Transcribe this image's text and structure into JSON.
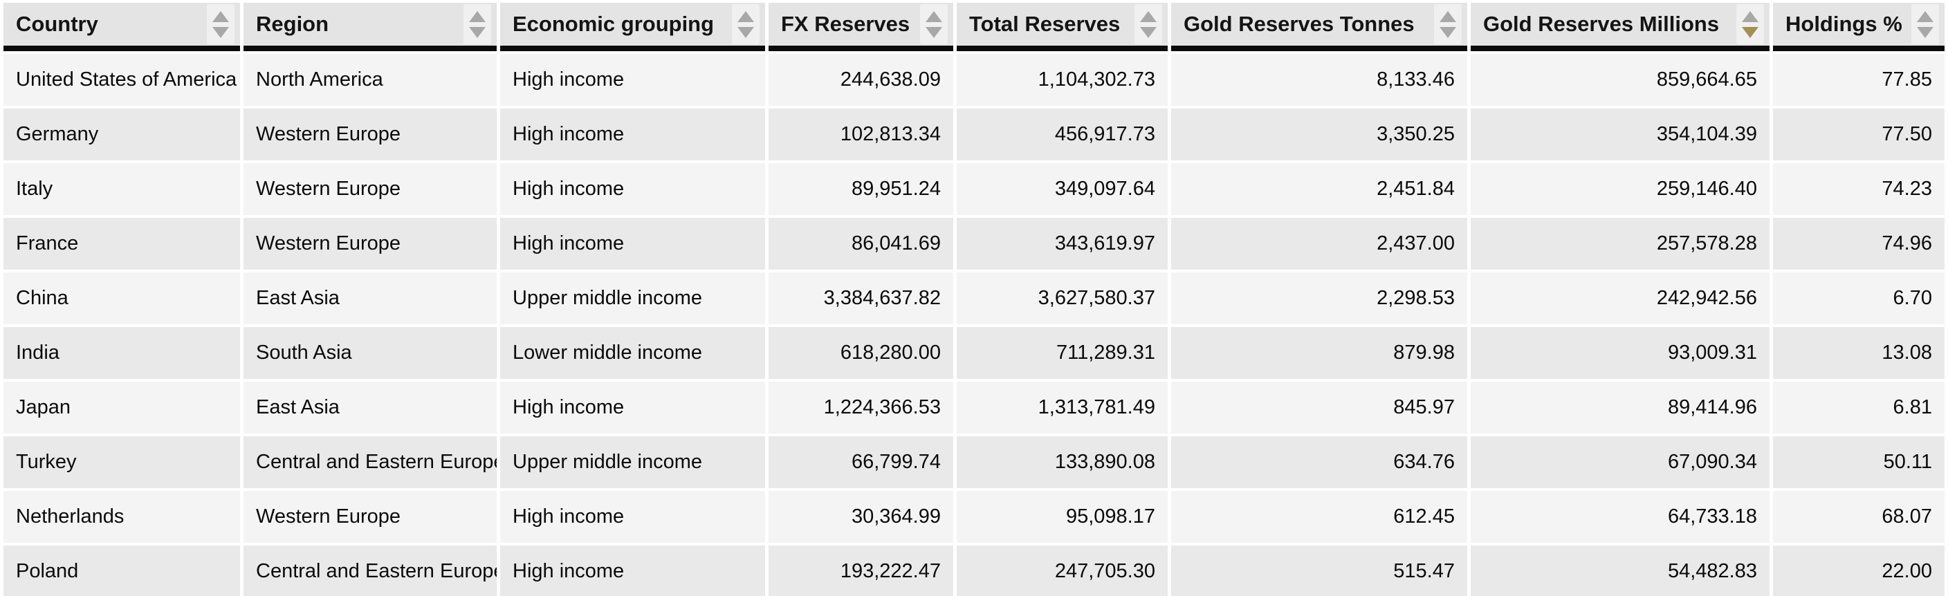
{
  "table": {
    "sorted_by": "Gold Reserves Millions",
    "sort_direction": "desc",
    "columns": [
      {
        "label": "Country",
        "sort": "none"
      },
      {
        "label": "Region",
        "sort": "none"
      },
      {
        "label": "Economic grouping",
        "sort": "none"
      },
      {
        "label": "FX Reserves",
        "sort": "none"
      },
      {
        "label": "Total Reserves",
        "sort": "none"
      },
      {
        "label": "Gold Reserves Tonnes",
        "sort": "none"
      },
      {
        "label": "Gold Reserves Millions",
        "sort": "desc"
      },
      {
        "label": "Holdings %",
        "sort": "none"
      }
    ],
    "rows": [
      [
        "United States of America",
        "North America",
        "High income",
        "244,638.09",
        "1,104,302.73",
        "8,133.46",
        "859,664.65",
        "77.85"
      ],
      [
        "Germany",
        "Western Europe",
        "High income",
        "102,813.34",
        "456,917.73",
        "3,350.25",
        "354,104.39",
        "77.50"
      ],
      [
        "Italy",
        "Western Europe",
        "High income",
        "89,951.24",
        "349,097.64",
        "2,451.84",
        "259,146.40",
        "74.23"
      ],
      [
        "France",
        "Western Europe",
        "High income",
        "86,041.69",
        "343,619.97",
        "2,437.00",
        "257,578.28",
        "74.96"
      ],
      [
        "China",
        "East Asia",
        "Upper middle income",
        "3,384,637.82",
        "3,627,580.37",
        "2,298.53",
        "242,942.56",
        "6.70"
      ],
      [
        "India",
        "South Asia",
        "Lower middle income",
        "618,280.00",
        "711,289.31",
        "879.98",
        "93,009.31",
        "13.08"
      ],
      [
        "Japan",
        "East Asia",
        "High income",
        "1,224,366.53",
        "1,313,781.49",
        "845.97",
        "89,414.96",
        "6.81"
      ],
      [
        "Turkey",
        "Central and Eastern Europe",
        "Upper middle income",
        "66,799.74",
        "133,890.08",
        "634.76",
        "67,090.34",
        "50.11"
      ],
      [
        "Netherlands",
        "Western Europe",
        "High income",
        "30,364.99",
        "95,098.17",
        "612.45",
        "64,733.18",
        "68.07"
      ],
      [
        "Poland",
        "Central and Eastern Europe",
        "High income",
        "193,222.47",
        "247,705.30",
        "515.47",
        "54,482.83",
        "22.00"
      ]
    ]
  },
  "chart_data": {
    "type": "table",
    "title": "",
    "columns": [
      "Country",
      "Region",
      "Economic grouping",
      "FX Reserves",
      "Total Reserves",
      "Gold Reserves Tonnes",
      "Gold Reserves Millions",
      "Holdings %"
    ]
  },
  "colors": {
    "header_bg": "#e4e4e4",
    "row_odd_bg": "#f4f4f4",
    "row_even_bg": "#e9e9e9",
    "header_border": "#0b0b0b",
    "sort_arrow_inactive": "#a8a8a8",
    "sort_arrow_active": "#a59050",
    "sort_button_bg": "#f0f0f0"
  },
  "icons": {
    "sort_up": "sort-ascending-icon",
    "sort_down": "sort-descending-icon"
  }
}
